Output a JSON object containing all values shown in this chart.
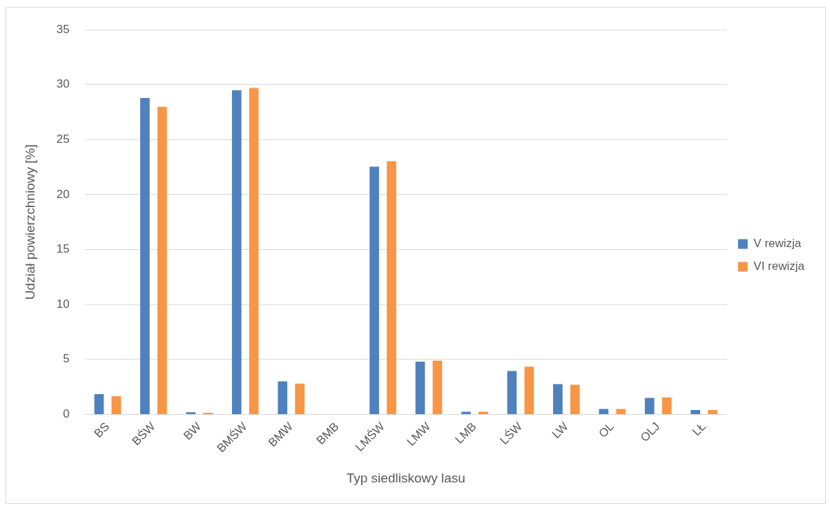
{
  "chart_data": {
    "type": "bar",
    "xlabel": "Typ siedliskowy lasu",
    "ylabel": "Udział powierzchniowy [%]",
    "categories": [
      "BS",
      "BŚW",
      "BW",
      "BMŚW",
      "BMW",
      "BMB",
      "LMŚW",
      "LMW",
      "LMB",
      "LŚW",
      "LW",
      "OL",
      "OLJ",
      "LŁ"
    ],
    "series": [
      {
        "name": "V rewizja",
        "color": "#4f81bd",
        "values": [
          1.85,
          28.8,
          0.2,
          29.5,
          3.0,
          0,
          22.55,
          4.8,
          0.25,
          3.95,
          2.75,
          0.5,
          1.5,
          0.4
        ]
      },
      {
        "name": "VI rewizja",
        "color": "#f79646",
        "values": [
          1.65,
          28.0,
          0.15,
          29.7,
          2.8,
          0,
          23.05,
          4.9,
          0.25,
          4.35,
          2.7,
          0.5,
          1.55,
          0.4
        ]
      }
    ],
    "ylim": [
      0,
      35
    ],
    "yticks": [
      0,
      5,
      10,
      15,
      20,
      25,
      30,
      35
    ],
    "grid": "y",
    "legend": "right"
  }
}
